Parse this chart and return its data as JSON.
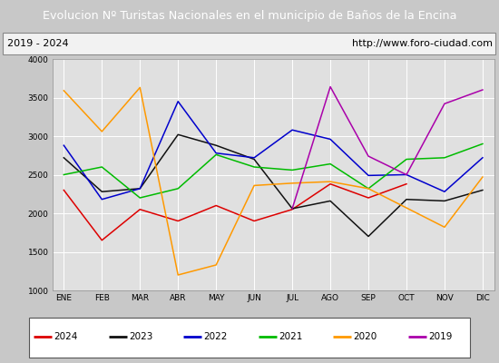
{
  "title": "Evolucion Nº Turistas Nacionales en el municipio de Baños de la Encina",
  "subtitle_left": "2019 - 2024",
  "subtitle_right": "http://www.foro-ciudad.com",
  "months": [
    "ENE",
    "FEB",
    "MAR",
    "ABR",
    "MAY",
    "JUN",
    "JUL",
    "AGO",
    "SEP",
    "OCT",
    "NOV",
    "DIC"
  ],
  "series": {
    "2024": [
      2300,
      1650,
      2050,
      1900,
      2100,
      1900,
      2050,
      2380,
      2200,
      2380,
      null,
      null
    ],
    "2023": [
      2720,
      2280,
      2320,
      3020,
      2880,
      2700,
      2060,
      2160,
      1700,
      2180,
      2160,
      2300
    ],
    "2022": [
      2880,
      2180,
      2320,
      3450,
      2780,
      2720,
      3080,
      2960,
      2490,
      2500,
      2280,
      2720
    ],
    "2021": [
      2500,
      2600,
      2200,
      2320,
      2760,
      2600,
      2560,
      2640,
      2320,
      2700,
      2720,
      2900
    ],
    "2020": [
      3590,
      3060,
      3630,
      1200,
      1330,
      2360,
      2390,
      2410,
      2320,
      2070,
      1820,
      2470
    ],
    "2019": [
      null,
      null,
      null,
      null,
      null,
      null,
      2060,
      3640,
      2740,
      2500,
      3420,
      3600
    ]
  },
  "colors": {
    "2024": "#dd0000",
    "2023": "#111111",
    "2022": "#0000cc",
    "2021": "#00bb00",
    "2020": "#ff9900",
    "2019": "#aa00aa"
  },
  "ylim": [
    1000,
    4000
  ],
  "yticks": [
    1000,
    1500,
    2000,
    2500,
    3000,
    3500,
    4000
  ],
  "title_bg": "#4472c4",
  "title_color": "#ffffff",
  "plot_bg": "#e0e0e0",
  "grid_color": "#ffffff",
  "legend_order": [
    "2024",
    "2023",
    "2022",
    "2021",
    "2020",
    "2019"
  ],
  "fig_width": 5.5,
  "fig_height": 4.0,
  "dpi": 100
}
